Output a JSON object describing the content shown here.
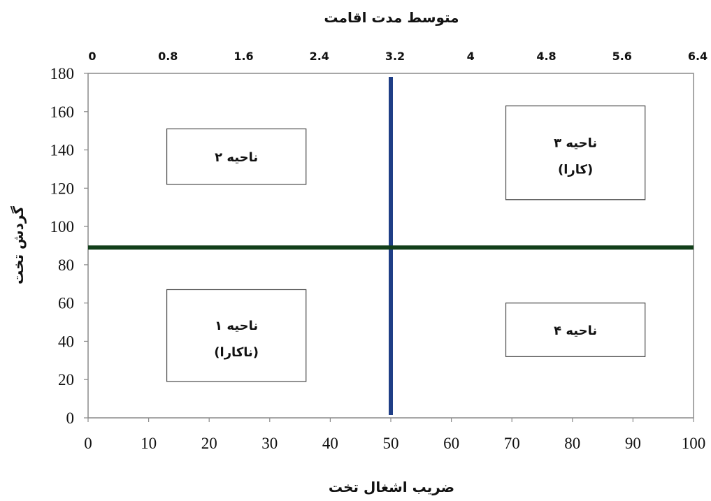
{
  "chart_data": {
    "type": "scatter",
    "top_axis_title": "متوسط مدت اقامت",
    "bottom_axis_title": "ضریب اشغال تخت",
    "y_axis_title": "گردش تخت",
    "x_ticks_bottom": [
      "0",
      "10",
      "20",
      "30",
      "40",
      "50",
      "60",
      "70",
      "80",
      "90",
      "100"
    ],
    "x_ticks_top": [
      "0",
      "0.8",
      "1.6",
      "2.4",
      "3.2",
      "4",
      "4.8",
      "5.6",
      "6.4"
    ],
    "y_ticks": [
      "0",
      "20",
      "40",
      "60",
      "80",
      "100",
      "120",
      "140",
      "160",
      "180"
    ],
    "xlim": [
      0,
      100
    ],
    "top_xlim": [
      0,
      6.4
    ],
    "ylim": [
      0,
      180
    ],
    "reference_lines": [
      {
        "orientation": "vertical",
        "x": 50,
        "color": "#1f3e86"
      },
      {
        "orientation": "horizontal",
        "y": 89,
        "color": "#123f1a"
      }
    ],
    "zones": [
      {
        "label": "ناحیه ۲",
        "sublabel": "",
        "x_range": [
          13,
          36
        ],
        "y_range": [
          122,
          151
        ]
      },
      {
        "label": "ناحیه ۳",
        "sublabel": "(کارا)",
        "x_range": [
          69,
          92
        ],
        "y_range": [
          114,
          163
        ]
      },
      {
        "label": "ناحیه ۱",
        "sublabel": "(ناکارا)",
        "x_range": [
          13,
          36
        ],
        "y_range": [
          19,
          67
        ]
      },
      {
        "label": "ناحیه ۴",
        "sublabel": "",
        "x_range": [
          69,
          92
        ],
        "y_range": [
          32,
          60
        ]
      }
    ]
  }
}
